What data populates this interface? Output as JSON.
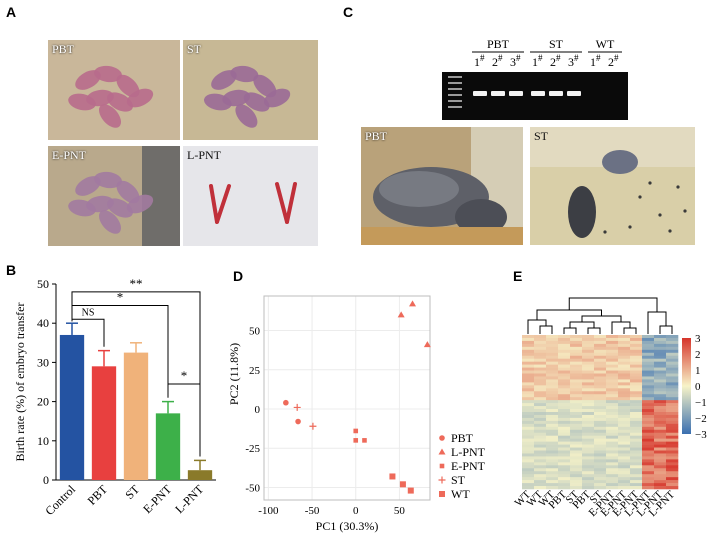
{
  "panel_labels": {
    "a": "A",
    "b": "B",
    "c": "C",
    "d": "D",
    "e": "E"
  },
  "panel_a": {
    "photos": [
      {
        "label": "PBT",
        "bg": "#c9b79a",
        "pup": "#b86b8c"
      },
      {
        "label": "ST",
        "bg": "#c7b895",
        "pup": "#9a6a96"
      },
      {
        "label": "E-PNT",
        "bg": "#b9a98c",
        "pup": "#a27aa0"
      },
      {
        "label": "L-PNT",
        "bg": "#e6e6ea",
        "pup": "#c0303a"
      }
    ]
  },
  "panel_c": {
    "gel": {
      "groups": [
        {
          "name": "PBT",
          "lanes": [
            "1",
            "2",
            "3"
          ]
        },
        {
          "name": "ST",
          "lanes": [
            "1",
            "2",
            "3"
          ]
        },
        {
          "name": "WT",
          "lanes": [
            "1",
            "2"
          ]
        }
      ],
      "superscript": "#"
    },
    "photos": [
      {
        "label": "PBT",
        "bg": "#b9a27a"
      },
      {
        "label": "ST",
        "bg": "#d9cfa8"
      }
    ]
  },
  "chart_data": [
    {
      "type": "bar",
      "panel": "B",
      "categories": [
        "Control",
        "PBT",
        "ST",
        "E-PNT",
        "L-PNT"
      ],
      "values": [
        37,
        29,
        32.5,
        17,
        2.5
      ],
      "errors": [
        3,
        4,
        2.5,
        3,
        2.5
      ],
      "colors": [
        "#2453a2",
        "#e8403f",
        "#f0b27a",
        "#3db049",
        "#8a7a2a"
      ],
      "ylabel": "Birth rate (%) of embryo transfer",
      "ylim": [
        0,
        50
      ],
      "yticks": [
        0,
        10,
        20,
        30,
        40,
        50
      ],
      "significance": [
        {
          "from": "Control",
          "to": "PBT",
          "label": "NS"
        },
        {
          "from": "Control",
          "to": "E-PNT",
          "label": "*"
        },
        {
          "from": "Control",
          "to": "L-PNT",
          "label": "**"
        },
        {
          "from": "E-PNT",
          "to": "L-PNT",
          "label": "*"
        }
      ]
    },
    {
      "type": "scatter",
      "panel": "D",
      "xlabel": "PC1 (30.3%)",
      "ylabel": "PC2 (11.8%)",
      "xlim": [
        -105,
        85
      ],
      "ylim": [
        -58,
        72
      ],
      "xticks": [
        -100,
        -50,
        0,
        50
      ],
      "yticks": [
        -50,
        -25,
        0,
        25,
        50
      ],
      "color": "#ee6a5a",
      "legend_position": "right",
      "series": [
        {
          "name": "PBT",
          "marker": "circle",
          "points": [
            [
              -80,
              4
            ],
            [
              -66,
              -8
            ]
          ]
        },
        {
          "name": "L-PNT",
          "marker": "triangle",
          "points": [
            [
              52,
              60
            ],
            [
              65,
              67
            ],
            [
              82,
              41
            ]
          ]
        },
        {
          "name": "E-PNT",
          "marker": "square-small",
          "points": [
            [
              0,
              -14
            ],
            [
              0,
              -20
            ],
            [
              10,
              -20
            ]
          ]
        },
        {
          "name": "ST",
          "marker": "plus",
          "points": [
            [
              -67,
              1
            ],
            [
              -49,
              -11
            ]
          ]
        },
        {
          "name": "WT",
          "marker": "square",
          "points": [
            [
              42,
              -43
            ],
            [
              54,
              -48
            ],
            [
              63,
              -52
            ]
          ]
        }
      ]
    },
    {
      "type": "heatmap",
      "panel": "E",
      "columns": [
        "WT",
        "WT",
        "WT",
        "PBT",
        "ST",
        "PBT",
        "ST",
        "E-PNT",
        "E-PNT",
        "E-PNT",
        "L-PNT",
        "L-PNT",
        "L-PNT"
      ],
      "color_scale": {
        "min": -3,
        "max": 3,
        "ticks": [
          3,
          2,
          1,
          0,
          -1,
          -2,
          -3
        ],
        "low": "#3a6fb0",
        "mid": "#f7f3c8",
        "high": "#d6342b"
      }
    }
  ]
}
